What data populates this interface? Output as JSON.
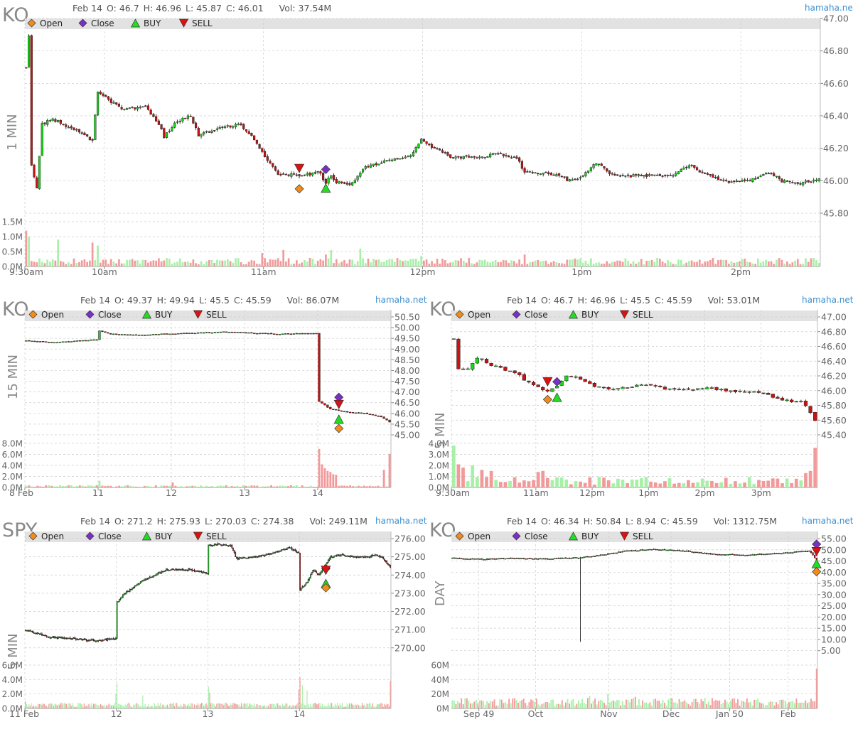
{
  "brand": "hamaha.net",
  "legend": [
    {
      "label": "Open",
      "icon": "open-diamond-icon",
      "color": "#f08c1e"
    },
    {
      "label": "Close",
      "icon": "close-diamond-icon",
      "color": "#7a30c8"
    },
    {
      "label": "BUY",
      "icon": "buy-triangle-icon",
      "color": "#22dd22"
    },
    {
      "label": "SELL",
      "icon": "sell-triangle-icon",
      "color": "#dd1111"
    }
  ],
  "colors": {
    "up": "#11dd11",
    "down": "#cc1111",
    "volUp": "#a8f0a8",
    "volDown": "#f29a9a",
    "grid": "#cccccc",
    "axisText": "#666666"
  },
  "chart_data": [
    {
      "id": "ko-1min",
      "type": "candlestick",
      "symbol": "KO",
      "timeframe": "1 MIN",
      "ohlc": {
        "date": "Feb 14",
        "o": "O: 46.7",
        "h": "H: 46.96",
        "l": "L: 45.87",
        "c": "C: 46.01",
        "vol": "Vol: 37.54M"
      },
      "price_ticks": [
        "47.00",
        "46.80",
        "46.60",
        "46.40",
        "46.20",
        "46.00",
        "45.80"
      ],
      "ylim": [
        45.8,
        47.0
      ],
      "volume_ticks": [
        "1.5M",
        "1.0M",
        "0.5M",
        "0.0M"
      ],
      "vol_max": 1.5,
      "x_ticks": [
        "9:30am",
        "10am",
        "11am",
        "12pm",
        "1pm",
        "2pm"
      ],
      "x_tick_pos": [
        0,
        30,
        90,
        150,
        210,
        270
      ],
      "n": 300,
      "path": [
        [
          0,
          46.7
        ],
        [
          1,
          46.9
        ],
        [
          2,
          46.1
        ],
        [
          4,
          45.95
        ],
        [
          6,
          46.35
        ],
        [
          10,
          46.38
        ],
        [
          20,
          46.3
        ],
        [
          25,
          46.25
        ],
        [
          27,
          46.55
        ],
        [
          35,
          46.45
        ],
        [
          45,
          46.45
        ],
        [
          50,
          46.35
        ],
        [
          52,
          46.27
        ],
        [
          57,
          46.37
        ],
        [
          62,
          46.4
        ],
        [
          65,
          46.28
        ],
        [
          72,
          46.32
        ],
        [
          80,
          46.35
        ],
        [
          85,
          46.28
        ],
        [
          90,
          46.15
        ],
        [
          95,
          46.04
        ],
        [
          105,
          46.03
        ],
        [
          110,
          46.06
        ],
        [
          113,
          45.99
        ],
        [
          115,
          46.03
        ],
        [
          117,
          45.99
        ],
        [
          123,
          45.98
        ],
        [
          127,
          46.07
        ],
        [
          130,
          46.1
        ],
        [
          140,
          46.13
        ],
        [
          145,
          46.16
        ],
        [
          149,
          46.25
        ],
        [
          155,
          46.19
        ],
        [
          160,
          46.15
        ],
        [
          170,
          46.14
        ],
        [
          178,
          46.17
        ],
        [
          185,
          46.14
        ],
        [
          188,
          46.05
        ],
        [
          200,
          46.04
        ],
        [
          205,
          46.0
        ],
        [
          210,
          46.03
        ],
        [
          215,
          46.11
        ],
        [
          220,
          46.05
        ],
        [
          225,
          46.03
        ],
        [
          235,
          46.03
        ],
        [
          245,
          46.04
        ],
        [
          250,
          46.1
        ],
        [
          255,
          46.05
        ],
        [
          265,
          45.99
        ],
        [
          275,
          46.01
        ],
        [
          280,
          46.05
        ],
        [
          285,
          46.0
        ],
        [
          290,
          45.98
        ],
        [
          299,
          46.01
        ]
      ],
      "seed": 11,
      "noise": 0.018,
      "vol_base": 0.18,
      "vol_spikes": [
        [
          0,
          1.2
        ],
        [
          1,
          1.0
        ],
        [
          12,
          0.9
        ],
        [
          25,
          0.8
        ],
        [
          27,
          0.7
        ],
        [
          89,
          0.45
        ],
        [
          97,
          0.55
        ],
        [
          113,
          0.4
        ],
        [
          115,
          0.55
        ],
        [
          126,
          0.6
        ],
        [
          149,
          0.35
        ],
        [
          188,
          0.4
        ]
      ],
      "markers": [
        {
          "type": "sell",
          "x": 103,
          "y": 46.08,
          "pos": "above"
        },
        {
          "type": "open",
          "x": 103,
          "y": 45.95,
          "pos": "below"
        },
        {
          "type": "close",
          "x": 113,
          "y": 46.07,
          "pos": "above"
        },
        {
          "type": "buy",
          "x": 113,
          "y": 45.95,
          "pos": "below"
        }
      ]
    },
    {
      "id": "ko-15min",
      "type": "candlestick",
      "symbol": "KO",
      "timeframe": "15 MIN",
      "ohlc": {
        "date": "Feb 14",
        "o": "O: 49.37",
        "h": "H: 49.94",
        "l": "L: 45.5",
        "c": "C: 45.59",
        "vol": "Vol: 86.07M"
      },
      "price_ticks": [
        "50.50",
        "50.00",
        "49.50",
        "49.00",
        "48.50",
        "48.00",
        "47.50",
        "47.00",
        "46.50",
        "46.00",
        "45.50",
        "45.00"
      ],
      "ylim": [
        45.0,
        50.5
      ],
      "volume_ticks": [
        "8.0M",
        "6.0M",
        "4.0M",
        "2.0M",
        "0.0M"
      ],
      "vol_max": 8.0,
      "x_ticks": [
        "8 Feb",
        "11",
        "12",
        "13",
        "14"
      ],
      "x_tick_pos": [
        0,
        26,
        52,
        78,
        104
      ],
      "n": 130,
      "path": [
        [
          0,
          49.4
        ],
        [
          10,
          49.3
        ],
        [
          25,
          49.45
        ],
        [
          26,
          49.85
        ],
        [
          30,
          49.7
        ],
        [
          40,
          49.65
        ],
        [
          52,
          49.72
        ],
        [
          60,
          49.75
        ],
        [
          70,
          49.8
        ],
        [
          78,
          49.77
        ],
        [
          90,
          49.7
        ],
        [
          103,
          49.75
        ],
        [
          104,
          46.55
        ],
        [
          108,
          46.2
        ],
        [
          112,
          46.1
        ],
        [
          115,
          46.05
        ],
        [
          120,
          46.0
        ],
        [
          126,
          45.85
        ],
        [
          129,
          45.6
        ]
      ],
      "seed": 23,
      "noise": 0.03,
      "vol_base": 0.25,
      "vol_spikes": [
        [
          26,
          1.2
        ],
        [
          52,
          0.9
        ],
        [
          104,
          7.0
        ],
        [
          105,
          4.2
        ],
        [
          106,
          3.5
        ],
        [
          107,
          3.0
        ],
        [
          108,
          2.8
        ],
        [
          109,
          2.4
        ],
        [
          110,
          2.3
        ],
        [
          129,
          6.1
        ],
        [
          127,
          3.2
        ]
      ],
      "markers": [
        {
          "type": "close",
          "x": 111,
          "y": 46.75,
          "pos": "center"
        },
        {
          "type": "sell",
          "x": 111,
          "y": 46.45,
          "pos": "center"
        },
        {
          "type": "buy",
          "x": 111,
          "y": 45.7,
          "pos": "center"
        },
        {
          "type": "open",
          "x": 111,
          "y": 45.3,
          "pos": "center"
        }
      ]
    },
    {
      "id": "ko-5min",
      "type": "candlestick",
      "symbol": "KO",
      "timeframe": "5 MIN",
      "ohlc": {
        "date": "Feb 14",
        "o": "O: 46.7",
        "h": "H: 46.96",
        "l": "L: 45.5",
        "c": "C: 45.59",
        "vol": "Vol: 53.01M"
      },
      "price_ticks": [
        "47.00",
        "46.80",
        "46.60",
        "46.40",
        "46.20",
        "46.00",
        "45.80",
        "45.60",
        "45.40"
      ],
      "ylim": [
        45.4,
        47.0
      ],
      "volume_ticks": [
        "4.0M",
        "3.0M",
        "2.0M",
        "1.0M",
        "0.0M"
      ],
      "vol_max": 4.0,
      "x_ticks": [
        "9:30am",
        "11am",
        "12pm",
        "1pm",
        "2pm",
        "3pm"
      ],
      "x_tick_pos": [
        0,
        18,
        30,
        42,
        54,
        66
      ],
      "n": 78,
      "path": [
        [
          0,
          46.7
        ],
        [
          1,
          46.3
        ],
        [
          3,
          46.3
        ],
        [
          5,
          46.45
        ],
        [
          7,
          46.38
        ],
        [
          10,
          46.3
        ],
        [
          13,
          46.25
        ],
        [
          15,
          46.15
        ],
        [
          18,
          46.05
        ],
        [
          20,
          45.98
        ],
        [
          22,
          46.05
        ],
        [
          24,
          46.2
        ],
        [
          26,
          46.18
        ],
        [
          30,
          46.05
        ],
        [
          35,
          46.02
        ],
        [
          40,
          46.08
        ],
        [
          45,
          46.03
        ],
        [
          50,
          46.02
        ],
        [
          55,
          46.03
        ],
        [
          60,
          45.99
        ],
        [
          65,
          45.98
        ],
        [
          68,
          45.92
        ],
        [
          72,
          45.85
        ],
        [
          74,
          45.85
        ],
        [
          75,
          45.78
        ],
        [
          77,
          45.6
        ]
      ],
      "seed": 37,
      "noise": 0.03,
      "vol_base": 0.6,
      "vol_spikes": [
        [
          0,
          3.8
        ],
        [
          1,
          2.1
        ],
        [
          2,
          1.8
        ],
        [
          4,
          2.0
        ],
        [
          6,
          1.6
        ],
        [
          8,
          1.5
        ],
        [
          18,
          1.4
        ],
        [
          19,
          1.5
        ],
        [
          76,
          1.5
        ],
        [
          77,
          3.6
        ],
        [
          75,
          1.3
        ]
      ],
      "markers": [
        {
          "type": "sell",
          "x": 20,
          "y": 46.13,
          "pos": "center"
        },
        {
          "type": "close",
          "x": 22,
          "y": 46.12,
          "pos": "center"
        },
        {
          "type": "open",
          "x": 20,
          "y": 45.88,
          "pos": "center"
        },
        {
          "type": "buy",
          "x": 22,
          "y": 45.9,
          "pos": "center"
        }
      ]
    },
    {
      "id": "spy-5min",
      "type": "candlestick",
      "symbol": "SPY",
      "timeframe": "5 MIN",
      "ohlc": {
        "date": "Feb 14",
        "o": "O: 271.2",
        "h": "H: 275.93",
        "l": "L: 270.03",
        "c": "C: 274.38",
        "vol": "Vol: 249.11M"
      },
      "price_ticks": [
        "276.00",
        "275.00",
        "274.00",
        "273.00",
        "272.00",
        "271.00",
        "270.00"
      ],
      "ylim": [
        269.6,
        276.0
      ],
      "volume_ticks": [
        "6.0M",
        "4.0M",
        "2.0M",
        "0.0M"
      ],
      "vol_max": 6.0,
      "x_ticks": [
        "11 Feb",
        "12",
        "13",
        "14"
      ],
      "x_tick_pos": [
        0,
        78,
        156,
        234
      ],
      "n": 312,
      "path": [
        [
          0,
          271.0
        ],
        [
          20,
          270.6
        ],
        [
          40,
          270.5
        ],
        [
          60,
          270.4
        ],
        [
          77,
          270.5
        ],
        [
          78,
          272.5
        ],
        [
          85,
          273.0
        ],
        [
          100,
          273.7
        ],
        [
          120,
          274.3
        ],
        [
          140,
          274.3
        ],
        [
          155,
          274.1
        ],
        [
          156,
          275.6
        ],
        [
          165,
          275.7
        ],
        [
          175,
          275.6
        ],
        [
          180,
          274.9
        ],
        [
          195,
          275.0
        ],
        [
          210,
          275.2
        ],
        [
          225,
          275.5
        ],
        [
          233,
          275.2
        ],
        [
          234,
          273.2
        ],
        [
          240,
          273.6
        ],
        [
          245,
          274.3
        ],
        [
          250,
          274.0
        ],
        [
          260,
          275.0
        ],
        [
          270,
          275.1
        ],
        [
          280,
          275.0
        ],
        [
          290,
          275.0
        ],
        [
          300,
          275.1
        ],
        [
          305,
          274.9
        ],
        [
          311,
          274.4
        ]
      ],
      "seed": 53,
      "noise": 0.09,
      "vol_base": 0.5,
      "vol_spikes": [
        [
          0,
          1.0
        ],
        [
          77,
          2.0
        ],
        [
          78,
          3.5
        ],
        [
          100,
          1.8
        ],
        [
          156,
          3.0
        ],
        [
          157,
          2.2
        ],
        [
          233,
          2.6
        ],
        [
          234,
          4.3
        ],
        [
          236,
          3.2
        ],
        [
          240,
          2.5
        ],
        [
          311,
          3.8
        ]
      ],
      "markers": [
        {
          "type": "close",
          "x": 256,
          "y": 274.35,
          "pos": "center"
        },
        {
          "type": "sell",
          "x": 256,
          "y": 274.3,
          "pos": "center"
        },
        {
          "type": "buy",
          "x": 256,
          "y": 273.5,
          "pos": "center"
        },
        {
          "type": "open",
          "x": 256,
          "y": 273.3,
          "pos": "center"
        }
      ]
    },
    {
      "id": "ko-day",
      "type": "candlestick",
      "symbol": "KO",
      "timeframe": "DAY",
      "ohlc": {
        "date": "Feb 14",
        "o": "O: 46.34",
        "h": "H: 50.84",
        "l": "L: 8.94",
        "c": "C: 45.59",
        "vol": "Vol: 1312.75M"
      },
      "price_ticks": [
        "55.00",
        "50.00",
        "45.00",
        "40.00",
        "35.00",
        "30.00",
        "25.00",
        "20.00",
        "15.00",
        "10.00",
        "5.00"
      ],
      "ylim": [
        3.0,
        55.0
      ],
      "volume_ticks": [
        "60M",
        "40M",
        "20M",
        "0M"
      ],
      "vol_max": 60,
      "x_ticks": [
        "Sep 49",
        "Oct",
        "Nov",
        "Dec",
        "Jan 50",
        "Feb"
      ],
      "x_tick_pos": [
        15,
        46,
        86,
        120,
        152,
        184
      ],
      "n": 200,
      "path": [
        [
          0,
          46.3
        ],
        [
          15,
          45.8
        ],
        [
          30,
          46.2
        ],
        [
          50,
          46.0
        ],
        [
          70,
          46.5
        ],
        [
          80,
          47.5
        ],
        [
          95,
          49.5
        ],
        [
          110,
          50.2
        ],
        [
          125,
          49.6
        ],
        [
          140,
          48.2
        ],
        [
          160,
          47.6
        ],
        [
          180,
          48.5
        ],
        [
          195,
          49.5
        ],
        [
          199,
          45.6
        ]
      ],
      "seed": 71,
      "noise": 0.4,
      "vol_base": 9,
      "vol_spikes": [
        [
          65,
          11
        ],
        [
          75,
          17
        ],
        [
          85,
          20
        ],
        [
          100,
          16
        ],
        [
          199,
          55
        ]
      ],
      "spikes": [
        [
          70,
          8.94
        ]
      ],
      "markers": [
        {
          "type": "close",
          "x": 199,
          "y": 52.5,
          "pos": "center"
        },
        {
          "type": "sell",
          "x": 199,
          "y": 49.5,
          "pos": "center"
        },
        {
          "type": "buy",
          "x": 199,
          "y": 43.5,
          "pos": "center"
        },
        {
          "type": "open",
          "x": 199,
          "y": 40.2,
          "pos": "center"
        }
      ]
    }
  ]
}
